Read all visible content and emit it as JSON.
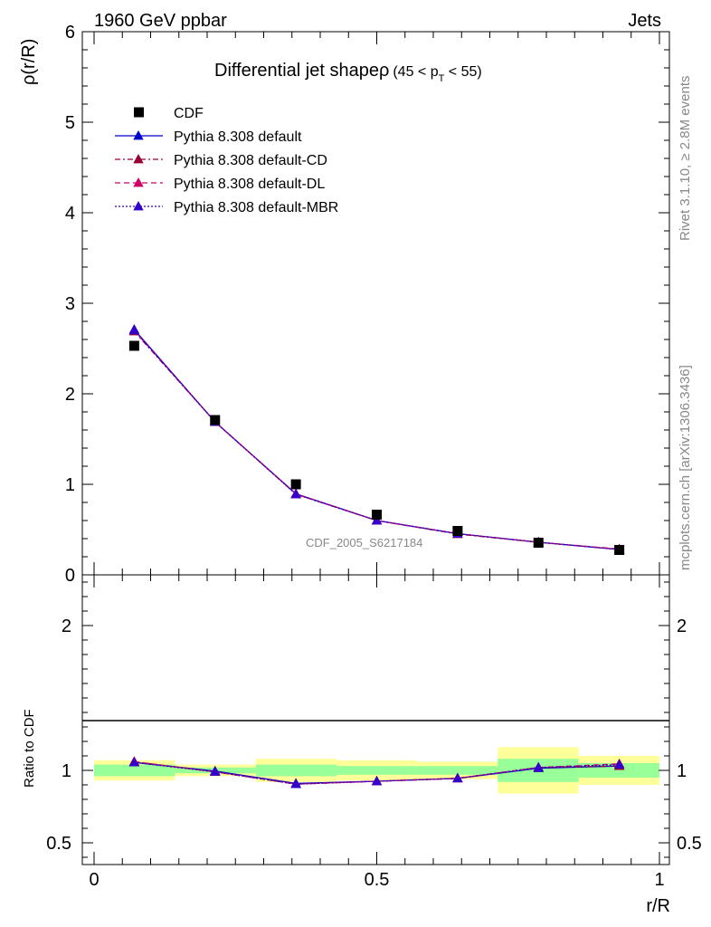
{
  "header": {
    "left": "1960 GeV ppbar",
    "right": "Jets"
  },
  "side_labels": {
    "rivet": "Rivet 3.1.10, ≥ 2.8M events",
    "mcplots": "mcplots.cern.ch [arXiv:1306.3436]"
  },
  "chart_data": [
    {
      "type": "line",
      "title_main": "Differential jet shapeρ",
      "title_cut": "(45 < p",
      "title_sub": "T",
      "title_cut_end": " < 55)",
      "ylabel": "ρ(r/R)",
      "xlabel": "r/R",
      "watermark": "CDF_2005_S6217184",
      "xlim": [
        0,
        1
      ],
      "ylim": [
        0,
        6
      ],
      "yticks": [
        0,
        1,
        2,
        3,
        4,
        5,
        6
      ],
      "ytick_labels": [
        "0",
        "1",
        "2",
        "3",
        "4",
        "5",
        "6"
      ],
      "x": [
        0.071,
        0.214,
        0.357,
        0.5,
        0.643,
        0.786,
        0.929
      ],
      "data": {
        "name": "CDF",
        "values": [
          2.53,
          1.71,
          1.0,
          0.665,
          0.485,
          0.355,
          0.275
        ]
      },
      "series": [
        {
          "name": "Pythia 8.308 default",
          "color": "#0000cc",
          "dash": "",
          "values": [
            2.71,
            1.69,
            0.895,
            0.6,
            0.455,
            0.36,
            0.28
          ]
        },
        {
          "name": "Pythia 8.308 default-CD",
          "color": "#990033",
          "dash": "6,3,2,3",
          "values": [
            2.69,
            1.69,
            0.89,
            0.6,
            0.45,
            0.36,
            0.28
          ]
        },
        {
          "name": "Pythia 8.308 default-DL",
          "color": "#cc0066",
          "dash": "6,4",
          "values": [
            2.7,
            1.69,
            0.895,
            0.6,
            0.455,
            0.36,
            0.285
          ]
        },
        {
          "name": "Pythia 8.308 default-MBR",
          "color": "#3300cc",
          "dash": "2,2",
          "values": [
            2.7,
            1.69,
            0.89,
            0.6,
            0.455,
            0.36,
            0.28
          ]
        }
      ]
    },
    {
      "type": "line",
      "ylabel": "Ratio to CDF",
      "xlabel": "r/R",
      "xlim": [
        0,
        1
      ],
      "ylim": [
        0.35,
        2.35
      ],
      "yticks": [
        0.5,
        1,
        2
      ],
      "ytick_labels": [
        "0.5",
        "1",
        "2"
      ],
      "xticks": [
        0,
        0.5,
        1
      ],
      "xtick_labels": [
        "0",
        "0.5",
        "1"
      ],
      "bins": [
        [
          0.0,
          0.143
        ],
        [
          0.143,
          0.286
        ],
        [
          0.286,
          0.429
        ],
        [
          0.429,
          0.571
        ],
        [
          0.571,
          0.714
        ],
        [
          0.714,
          0.857
        ],
        [
          0.857,
          1.0
        ]
      ],
      "band_yellow": [
        [
          0.93,
          1.07
        ],
        [
          0.96,
          1.04
        ],
        [
          0.92,
          1.08
        ],
        [
          0.93,
          1.07
        ],
        [
          0.94,
          1.06
        ],
        [
          0.84,
          1.16
        ],
        [
          0.9,
          1.1
        ]
      ],
      "band_green": [
        [
          0.96,
          1.04
        ],
        [
          0.98,
          1.02
        ],
        [
          0.96,
          1.04
        ],
        [
          0.97,
          1.03
        ],
        [
          0.97,
          1.03
        ],
        [
          0.92,
          1.08
        ],
        [
          0.95,
          1.05
        ]
      ],
      "x": [
        0.071,
        0.214,
        0.357,
        0.5,
        0.643,
        0.786,
        0.929
      ],
      "series": [
        {
          "name": "Pythia 8.308 default",
          "color": "#0000cc",
          "dash": "",
          "values": [
            1.055,
            0.995,
            0.91,
            0.925,
            0.945,
            1.015,
            1.03
          ]
        },
        {
          "name": "Pythia 8.308 default-CD",
          "color": "#990033",
          "dash": "6,3,2,3",
          "values": [
            1.06,
            0.99,
            0.905,
            0.925,
            0.945,
            1.02,
            1.03
          ]
        },
        {
          "name": "Pythia 8.308 default-DL",
          "color": "#cc0066",
          "dash": "6,4",
          "values": [
            1.06,
            0.99,
            0.905,
            0.925,
            0.945,
            1.02,
            1.045
          ]
        },
        {
          "name": "Pythia 8.308 default-MBR",
          "color": "#3300cc",
          "dash": "2,2",
          "values": [
            1.055,
            0.99,
            0.905,
            0.925,
            0.945,
            1.02,
            1.04
          ]
        }
      ]
    }
  ]
}
